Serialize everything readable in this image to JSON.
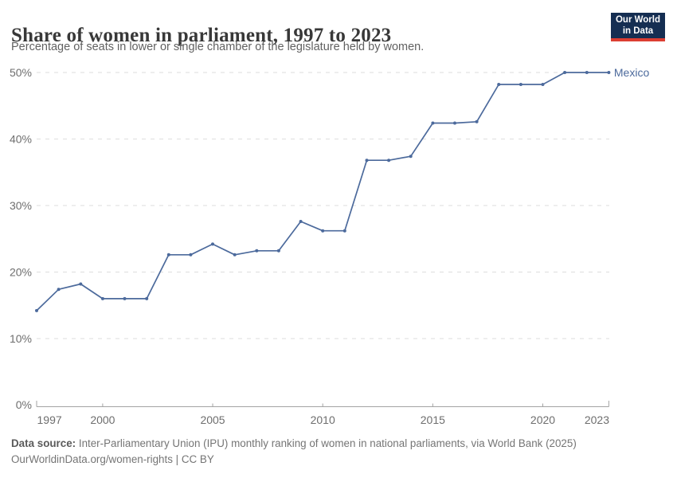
{
  "header": {
    "title": "Share of women in parliament, 1997 to 2023",
    "subtitle": "Percentage of seats in lower or single chamber of the legislature held by women.",
    "logo": {
      "line1": "Our World",
      "line2": "in Data",
      "bg_color": "#152e52",
      "accent_color": "#dc3e32"
    }
  },
  "chart_data": {
    "type": "line",
    "title": "Share of women in parliament, 1997 to 2023",
    "subtitle": "Percentage of seats in lower or single chamber of the legislature held by women.",
    "x": [
      1997,
      1998,
      1999,
      2000,
      2001,
      2002,
      2003,
      2004,
      2005,
      2006,
      2007,
      2008,
      2009,
      2010,
      2011,
      2012,
      2013,
      2014,
      2015,
      2016,
      2017,
      2018,
      2019,
      2020,
      2021,
      2022,
      2023
    ],
    "series": [
      {
        "name": "Mexico",
        "color": "#4C6A9C",
        "values": [
          14.2,
          17.4,
          18.2,
          16,
          16,
          16,
          22.6,
          22.6,
          24.2,
          22.6,
          23.2,
          23.2,
          27.6,
          26.2,
          26.2,
          36.8,
          36.8,
          37.4,
          42.4,
          42.4,
          42.6,
          48.2,
          48.2,
          48.2,
          50,
          50,
          50
        ]
      }
    ],
    "xlim": [
      1997,
      2023
    ],
    "ylim": [
      0,
      50
    ],
    "x_ticks": [
      1997,
      2000,
      2005,
      2010,
      2015,
      2020,
      2023
    ],
    "y_ticks": [
      0,
      10,
      20,
      30,
      40,
      50
    ],
    "y_tick_suffix": "%",
    "grid": "horizontal-dashed",
    "grid_color": "#dedede",
    "axis_color": "#a3a3a3",
    "tick_label_color": "#6e6e6e",
    "legend_position": "end-of-line",
    "end_label": "Mexico"
  },
  "footer": {
    "datasource_label": "Data source:",
    "datasource_text": " Inter-Parliamentary Union (IPU) monthly ranking of women in national parliaments, via World Bank (2025)",
    "license_line": "OurWorldinData.org/women-rights | CC BY"
  }
}
